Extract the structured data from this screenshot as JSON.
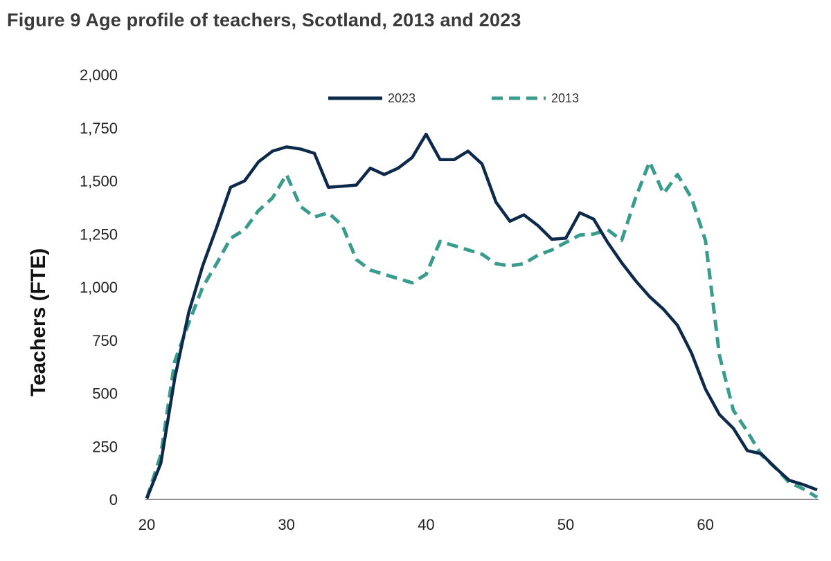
{
  "chart_data": {
    "type": "line",
    "title": "Figure 9 Age profile of teachers, Scotland, 2013 and 2023",
    "xlabel": "",
    "ylabel": "Teachers (FTE)",
    "xlim": [
      20,
      68
    ],
    "ylim": [
      0,
      2000
    ],
    "x_ticks": [
      20,
      30,
      40,
      50,
      60
    ],
    "y_ticks": [
      0,
      250,
      500,
      750,
      1000,
      1250,
      1500,
      1750,
      2000
    ],
    "y_tick_labels": [
      "0",
      "250",
      "500",
      "750",
      "1,000",
      "1,250",
      "1,500",
      "1,750",
      "2,000"
    ],
    "grid": false,
    "legend_position": "top",
    "x": [
      20,
      21,
      22,
      23,
      24,
      25,
      26,
      27,
      28,
      29,
      30,
      31,
      32,
      33,
      34,
      35,
      36,
      37,
      38,
      39,
      40,
      41,
      42,
      43,
      44,
      45,
      46,
      47,
      48,
      49,
      50,
      51,
      52,
      53,
      54,
      55,
      56,
      57,
      58,
      59,
      60,
      61,
      62,
      63,
      64,
      65,
      66,
      67,
      68
    ],
    "series": [
      {
        "name": "2023",
        "color": "#0d2a4a",
        "dash": "solid",
        "values": [
          5,
          170,
          570,
          880,
          1100,
          1280,
          1470,
          1500,
          1590,
          1640,
          1660,
          1650,
          1630,
          1470,
          1475,
          1480,
          1560,
          1530,
          1560,
          1610,
          1720,
          1600,
          1600,
          1640,
          1580,
          1400,
          1310,
          1340,
          1290,
          1225,
          1230,
          1350,
          1320,
          1210,
          1115,
          1030,
          955,
          895,
          820,
          690,
          520,
          400,
          335,
          230,
          215,
          150,
          90,
          70,
          45
        ]
      },
      {
        "name": "2013",
        "color": "#3a9c8c",
        "dash": "dashed",
        "values": [
          5,
          210,
          650,
          830,
          1000,
          1110,
          1230,
          1270,
          1360,
          1420,
          1530,
          1380,
          1330,
          1350,
          1290,
          1130,
          1080,
          1060,
          1040,
          1020,
          1060,
          1215,
          1195,
          1175,
          1155,
          1110,
          1100,
          1110,
          1150,
          1175,
          1210,
          1245,
          1250,
          1270,
          1220,
          1420,
          1590,
          1440,
          1530,
          1420,
          1220,
          680,
          420,
          320,
          210,
          150,
          80,
          50,
          10
        ]
      }
    ]
  }
}
